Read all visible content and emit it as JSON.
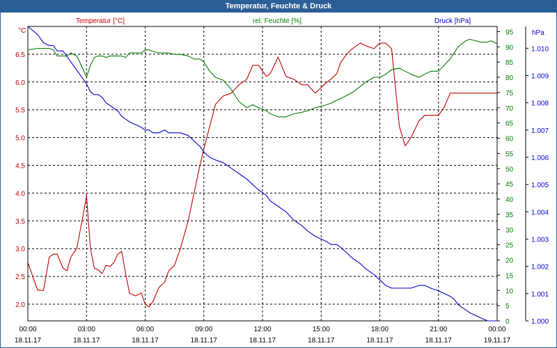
{
  "window": {
    "title": "Temperatur, Feuchte & Druck"
  },
  "colors": {
    "temperature": "#c00000",
    "humidity": "#007a00",
    "pressure": "#0000c8",
    "grid": "#000000",
    "titlebar": "#2b5e97"
  },
  "chart_data": {
    "type": "line",
    "title": "Temperatur, Feuchte & Druck",
    "grid": true,
    "x_ticks": [
      {
        "time": "00:00",
        "date": "18.11.17"
      },
      {
        "time": "03:00",
        "date": "18.11.17"
      },
      {
        "time": "06:00",
        "date": "18.11.17"
      },
      {
        "time": "09:00",
        "date": "18.11.17"
      },
      {
        "time": "12:00",
        "date": "18.11.17"
      },
      {
        "time": "15:00",
        "date": "18.11.17"
      },
      {
        "time": "18:00",
        "date": "18.11.17"
      },
      {
        "time": "21:00",
        "date": "18.11.17"
      },
      {
        "time": "00:00",
        "date": "19.11.17"
      }
    ],
    "x_range_hours": [
      0,
      24
    ],
    "axes": {
      "temperature": {
        "label": "°C",
        "legend": "Temperatur [°C]",
        "range": [
          1.7,
          7.0
        ],
        "ticks": [
          "2.0",
          "2.5",
          "3.0",
          "3.5",
          "4.0",
          "4.5",
          "5.0",
          "5.5",
          "6.0",
          "6.5"
        ],
        "tick_values": [
          2.0,
          2.5,
          3.0,
          3.5,
          4.0,
          4.5,
          5.0,
          5.5,
          6.0,
          6.5
        ]
      },
      "humidity": {
        "label": "%",
        "legend": "rel. Feuchte [%]",
        "range": [
          0,
          96.7
        ],
        "ticks": [
          "0",
          "5",
          "10",
          "15",
          "20",
          "25",
          "30",
          "35",
          "40",
          "45",
          "50",
          "55",
          "60",
          "65",
          "70",
          "75",
          "80",
          "85",
          "90",
          "95"
        ],
        "tick_values": [
          0,
          5,
          10,
          15,
          20,
          25,
          30,
          35,
          40,
          45,
          50,
          55,
          60,
          65,
          70,
          75,
          80,
          85,
          90,
          95
        ]
      },
      "pressure": {
        "label": "hPa",
        "legend": "Druck [hPa]",
        "range": [
          1.0,
          1.0108
        ],
        "ticks": [
          "1.000",
          "1.001",
          "1.002",
          "1.003",
          "1.004",
          "1.005",
          "1.006",
          "1.007",
          "1.008",
          "1.009",
          "1.010"
        ],
        "tick_values": [
          1.0,
          1.001,
          1.002,
          1.003,
          1.004,
          1.005,
          1.006,
          1.007,
          1.008,
          1.009,
          1.01
        ]
      }
    },
    "series": [
      {
        "name": "Temperatur [°C]",
        "axis": "temperature",
        "x": [
          0,
          0.5,
          0.8,
          1.1,
          1.3,
          1.5,
          1.8,
          2.0,
          2.2,
          2.5,
          2.8,
          3.0,
          3.2,
          3.4,
          3.6,
          3.8,
          4.0,
          4.2,
          4.4,
          4.6,
          4.8,
          5.0,
          5.2,
          5.5,
          5.8,
          6.0,
          6.2,
          6.4,
          6.7,
          7.0,
          7.2,
          7.5,
          7.8,
          8.2,
          8.5,
          8.8,
          9.0,
          9.3,
          9.6,
          10.0,
          10.4,
          10.8,
          11.2,
          11.5,
          11.8,
          12.2,
          12.4,
          12.8,
          13.2,
          13.6,
          14.0,
          14.3,
          14.7,
          15.0,
          15.3,
          15.5,
          15.8,
          16.0,
          16.3,
          16.6,
          17.0,
          17.3,
          17.7,
          18.0,
          18.3,
          18.6,
          19.0,
          19.3,
          19.6,
          20.0,
          20.3,
          20.6,
          21.0,
          21.3,
          21.6,
          21.8,
          22.0,
          22.2,
          22.4,
          22.6,
          22.9,
          23.2,
          23.5,
          23.7,
          24.0
        ],
        "values": [
          2.75,
          2.25,
          2.25,
          2.85,
          2.9,
          2.9,
          2.65,
          2.6,
          2.85,
          3.0,
          3.55,
          3.95,
          3.0,
          2.65,
          2.62,
          2.55,
          2.7,
          2.68,
          2.75,
          2.9,
          2.95,
          2.55,
          2.2,
          2.15,
          2.2,
          2.0,
          1.95,
          2.05,
          2.3,
          2.4,
          2.6,
          2.7,
          3.0,
          3.5,
          4.0,
          4.5,
          4.8,
          5.2,
          5.6,
          5.75,
          5.8,
          5.95,
          6.05,
          6.3,
          6.3,
          6.1,
          6.15,
          6.45,
          6.1,
          6.05,
          5.95,
          5.95,
          5.8,
          5.9,
          6.0,
          6.05,
          6.15,
          6.35,
          6.5,
          6.6,
          6.7,
          6.65,
          6.6,
          6.7,
          6.7,
          6.6,
          5.2,
          4.85,
          5.0,
          5.3,
          5.4,
          5.4,
          5.4,
          5.55,
          5.8,
          5.8,
          5.8,
          5.8,
          5.8,
          5.8,
          5.8,
          5.8,
          5.8,
          5.8,
          5.8
        ]
      },
      {
        "name": "rel. Feuchte [%]",
        "axis": "humidity",
        "x": [
          0,
          0.5,
          0.8,
          1.1,
          1.3,
          1.5,
          1.8,
          2.0,
          2.2,
          2.5,
          2.8,
          3.0,
          3.2,
          3.4,
          3.6,
          3.8,
          4.0,
          4.2,
          4.4,
          4.6,
          4.8,
          5.0,
          5.2,
          5.5,
          5.8,
          6.0,
          6.2,
          6.4,
          6.7,
          7.0,
          7.2,
          7.5,
          7.8,
          8.2,
          8.5,
          8.8,
          9.0,
          9.3,
          9.6,
          10.0,
          10.4,
          10.8,
          11.2,
          11.5,
          11.8,
          12.2,
          12.4,
          12.8,
          13.2,
          13.6,
          14.0,
          14.3,
          14.7,
          15.0,
          15.3,
          15.5,
          15.8,
          16.0,
          16.3,
          16.6,
          17.0,
          17.3,
          17.7,
          18.0,
          18.3,
          18.6,
          19.0,
          19.3,
          19.6,
          20.0,
          20.3,
          20.6,
          21.0,
          21.3,
          21.6,
          21.8,
          22.0,
          22.2,
          22.4,
          22.6,
          22.9,
          23.2,
          23.5,
          23.7,
          24.0
        ],
        "values": [
          89,
          89.5,
          89.5,
          89.5,
          89,
          87,
          87,
          87,
          88,
          87,
          83,
          80,
          84,
          86.5,
          87,
          87,
          86.5,
          87,
          87,
          87,
          87,
          86.5,
          88,
          88,
          88,
          89,
          89,
          88.5,
          88,
          88,
          88,
          87.5,
          87.5,
          87,
          86,
          86,
          85,
          82,
          80,
          79,
          76,
          72,
          70,
          71,
          70,
          69,
          68,
          67,
          67,
          68,
          68.5,
          69,
          70,
          70.5,
          71,
          71.5,
          72.5,
          73,
          74,
          75,
          77,
          78.5,
          80,
          80,
          81,
          82.5,
          83,
          82,
          81,
          80,
          81,
          82,
          82,
          84,
          86,
          88,
          90,
          91,
          92,
          92.5,
          92,
          91.5,
          91.5,
          92,
          91
        ]
      },
      {
        "name": "Druck [hPa]",
        "axis": "pressure",
        "x": [
          0,
          0.5,
          0.8,
          1.1,
          1.3,
          1.5,
          1.8,
          2.0,
          2.2,
          2.5,
          2.8,
          3.0,
          3.2,
          3.4,
          3.6,
          3.8,
          4.0,
          4.2,
          4.4,
          4.6,
          4.8,
          5.0,
          5.2,
          5.5,
          5.8,
          6.0,
          6.2,
          6.4,
          6.7,
          7.0,
          7.2,
          7.5,
          7.8,
          8.2,
          8.5,
          8.8,
          9.0,
          9.3,
          9.6,
          10.0,
          10.4,
          10.8,
          11.2,
          11.5,
          11.8,
          12.2,
          12.4,
          12.8,
          13.2,
          13.6,
          14.0,
          14.3,
          14.7,
          15.0,
          15.3,
          15.5,
          15.8,
          16.0,
          16.3,
          16.6,
          17.0,
          17.3,
          17.7,
          18.0,
          18.3,
          18.6,
          19.0,
          19.3,
          19.6,
          20.0,
          20.3,
          20.6,
          21.0,
          21.3,
          21.6,
          21.8,
          22.0,
          22.2,
          22.4,
          22.6,
          22.9,
          23.2,
          23.5,
          23.7,
          24.0
        ],
        "values": [
          1.0108,
          1.0105,
          1.0102,
          1.0101,
          1.0101,
          1.0099,
          1.0099,
          1.0097,
          1.0095,
          1.0092,
          1.0089,
          1.0087,
          1.0084,
          1.0083,
          1.0083,
          1.0082,
          1.008,
          1.0079,
          1.0078,
          1.0077,
          1.0075,
          1.0074,
          1.0073,
          1.0072,
          1.0071,
          1.007,
          1.007,
          1.0069,
          1.0069,
          1.007,
          1.0069,
          1.0069,
          1.0069,
          1.0068,
          1.0066,
          1.0064,
          1.0062,
          1.006,
          1.0059,
          1.0058,
          1.0056,
          1.0054,
          1.0052,
          1.005,
          1.0048,
          1.0046,
          1.0044,
          1.0042,
          1.004,
          1.0037,
          1.0035,
          1.0033,
          1.0031,
          1.003,
          1.0029,
          1.0028,
          1.0028,
          1.0027,
          1.0025,
          1.0023,
          1.0021,
          1.0019,
          1.0017,
          1.0015,
          1.0013,
          1.0012,
          1.0012,
          1.0012,
          1.0012,
          1.0013,
          1.0013,
          1.0012,
          1.0011,
          1.001,
          1.0009,
          1.0008,
          1.0006,
          1.0005,
          1.0004,
          1.0003,
          1.0002,
          1.0001,
          1.0,
          1.0,
          1.0
        ]
      }
    ]
  }
}
